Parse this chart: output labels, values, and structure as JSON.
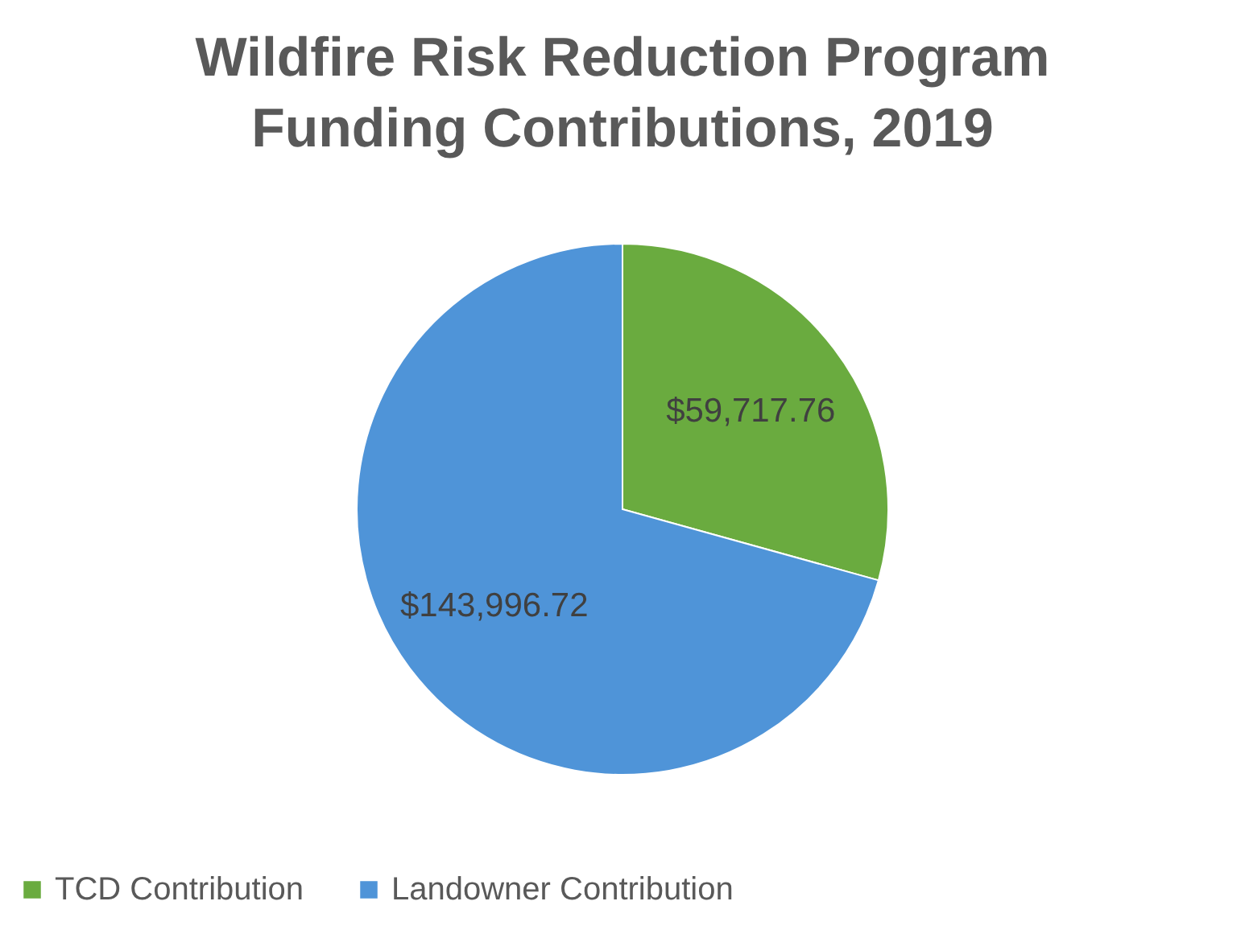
{
  "chart_data": {
    "type": "pie",
    "title": "Wildfire Risk Reduction Program Funding Contributions, 2019",
    "categories": [
      "TCD Contribution",
      "Landowner Contribution"
    ],
    "values": [
      59717.76,
      143996.72
    ],
    "colors": [
      "#6aab3f",
      "#4f94d8"
    ],
    "value_labels": [
      "$59,717.76",
      "$143,996.72"
    ],
    "legend": "bottom"
  }
}
